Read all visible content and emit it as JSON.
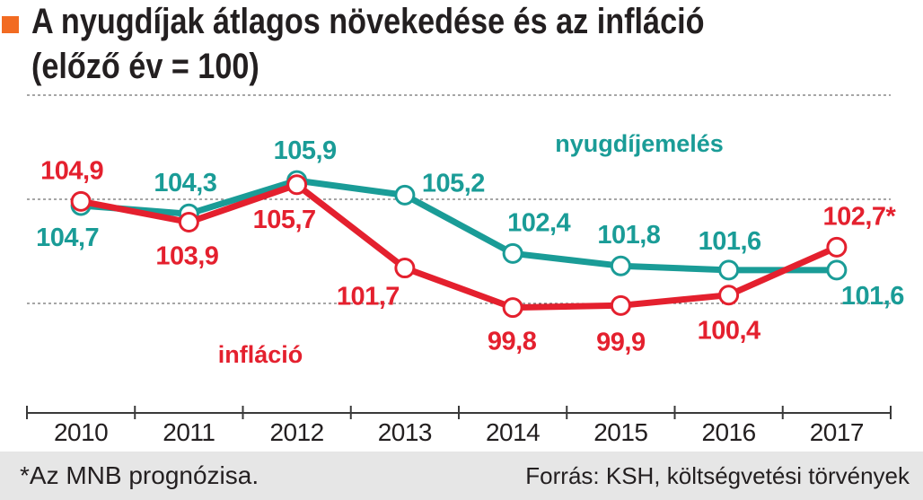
{
  "header": {
    "accent_color": "#f26b22"
  },
  "chart_data": {
    "type": "line",
    "title": "A nyugdíjak átlagos növekedése és az infláció",
    "subtitle": "(előző év = 100)",
    "categories": [
      "2010",
      "2011",
      "2012",
      "2013",
      "2014",
      "2015",
      "2016",
      "2017"
    ],
    "ylim": [
      95,
      110
    ],
    "grid": true,
    "y_gridlines": [
      100,
      105,
      110
    ],
    "legend": "inline",
    "series": [
      {
        "name": "nyugdíjemelés",
        "color": "#1a9c97",
        "values": [
          104.7,
          104.3,
          105.9,
          105.2,
          102.4,
          101.8,
          101.6,
          101.6
        ],
        "labels": [
          "104,7",
          "104,3",
          "105,9",
          "105,2",
          "102,4",
          "101,8",
          "101,6",
          "101,6"
        ]
      },
      {
        "name": "infláció",
        "color": "#e4202e",
        "values": [
          104.9,
          103.9,
          105.7,
          101.7,
          99.8,
          99.9,
          100.4,
          102.7
        ],
        "labels": [
          "104,9",
          "103,9",
          "105,7",
          "101,7",
          "99,8",
          "99,9",
          "100,4",
          "102,7*"
        ]
      }
    ]
  },
  "footer": {
    "note": "*Az MNB prognózisa.",
    "source": "Forrás: KSH, költségvetési törvények"
  }
}
